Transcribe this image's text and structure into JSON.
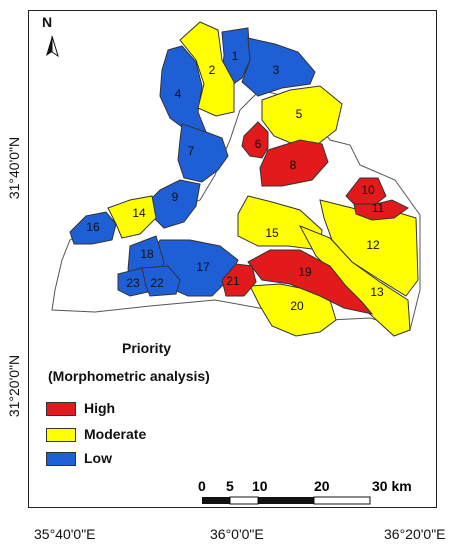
{
  "north_label": "N",
  "lat_labels": [
    "31°40'0\"N",
    "31°20'0\"N"
  ],
  "lon_labels": [
    "35°40'0\"E",
    "36°0'0\"E",
    "36°20'0\"E"
  ],
  "legend": {
    "title_line1": "Priority",
    "title_line2": "(Morphometric analysis)",
    "items": [
      {
        "label": "High",
        "color": "#e31a1c"
      },
      {
        "label": "Moderate",
        "color": "#ffff00"
      },
      {
        "label": "Low",
        "color": "#1f5fd6"
      }
    ]
  },
  "scale_bar": {
    "labels": [
      "0",
      "5",
      "10",
      "20",
      "30 km"
    ]
  },
  "subbasins": [
    {
      "id": "1",
      "priority": "Low"
    },
    {
      "id": "2",
      "priority": "Moderate"
    },
    {
      "id": "3",
      "priority": "Low"
    },
    {
      "id": "4",
      "priority": "Low"
    },
    {
      "id": "5",
      "priority": "Moderate"
    },
    {
      "id": "6",
      "priority": "High"
    },
    {
      "id": "7",
      "priority": "Low"
    },
    {
      "id": "8",
      "priority": "High"
    },
    {
      "id": "9",
      "priority": "Low"
    },
    {
      "id": "10",
      "priority": "High"
    },
    {
      "id": "11",
      "priority": "High"
    },
    {
      "id": "12",
      "priority": "Moderate"
    },
    {
      "id": "13",
      "priority": "Moderate"
    },
    {
      "id": "14",
      "priority": "Moderate"
    },
    {
      "id": "15",
      "priority": "Moderate"
    },
    {
      "id": "16",
      "priority": "Low"
    },
    {
      "id": "17",
      "priority": "Low"
    },
    {
      "id": "18",
      "priority": "Low"
    },
    {
      "id": "19",
      "priority": "High"
    },
    {
      "id": "20",
      "priority": "Moderate"
    },
    {
      "id": "21",
      "priority": "High"
    },
    {
      "id": "22",
      "priority": "Low"
    },
    {
      "id": "23",
      "priority": "Low"
    }
  ]
}
